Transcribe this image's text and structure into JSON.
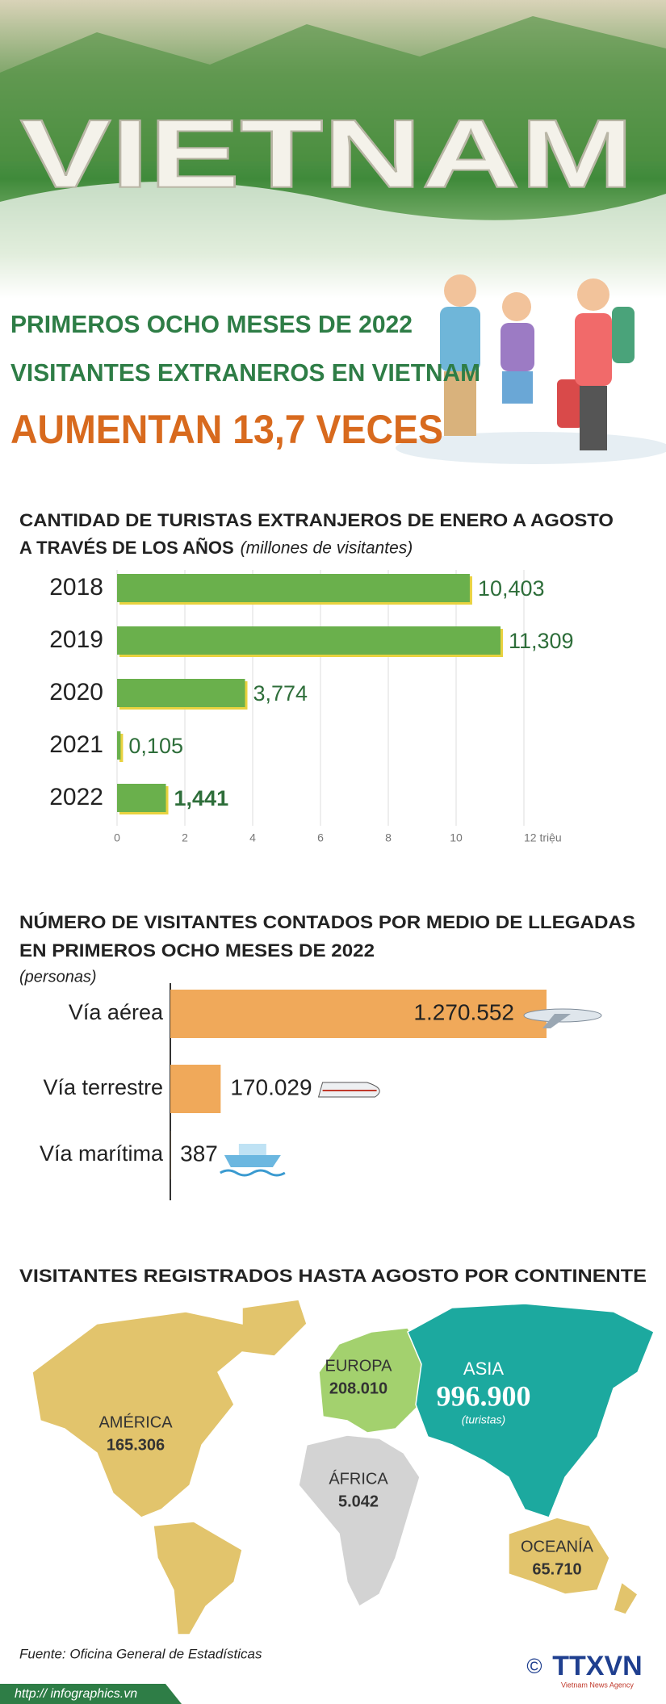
{
  "header": {
    "image_text": "VIETNAM",
    "title_lines": [
      "PRIMEROS OCHO MESES DE 2022",
      "VISITANTES EXTRANEROS EN VIETNAM",
      "AUMENTAN 13,7 VECES"
    ]
  },
  "chart_data": [
    {
      "type": "bar",
      "orientation": "horizontal",
      "title": [
        "CANTIDAD DE TURISTAS EXTRANJEROS DE ENERO A AGOSTO",
        "A TRAVÉS DE LOS AÑOS"
      ],
      "subtitle": "(millones de visitantes)",
      "categories": [
        "2018",
        "2019",
        "2020",
        "2021",
        "2022"
      ],
      "values": [
        10.403,
        11.309,
        3.774,
        0.105,
        1.441
      ],
      "value_labels": [
        "10,403",
        "11,309",
        "3,774",
        "0,105",
        "1,441"
      ],
      "color": "#6ab04c",
      "xlim": [
        0,
        12
      ],
      "xticks": [
        0,
        2,
        4,
        6,
        8,
        10,
        {
          "value": 12,
          "label": "12 triệu"
        }
      ],
      "grid": true
    },
    {
      "type": "bar",
      "orientation": "horizontal",
      "title": [
        "NÚMERO DE VISITANTES CONTADOS POR MEDIO DE LLEGADAS",
        "EN PRIMEROS OCHO MESES DE 2022"
      ],
      "subtitle": "(personas)",
      "categories": [
        "Vía aérea",
        "Vía terrestre",
        "Vía marítima"
      ],
      "values": [
        1270552,
        170029,
        387
      ],
      "value_labels": [
        "1.270.552",
        "170.029",
        "387"
      ],
      "color": "#f0a95a"
    },
    {
      "type": "map",
      "title": "VISITANTES REGISTRADOS HASTA AGOSTO POR CONTINENTE",
      "categories": [
        "AMÉRICA",
        "EUROPA",
        "ASIA",
        "ÁFRICA",
        "OCEANÍA"
      ],
      "values": [
        165306,
        208010,
        996900,
        5042,
        65710
      ],
      "value_labels": [
        "165.306",
        "208.010",
        "996.900",
        "5.042",
        "65.710"
      ],
      "unit": "(turistas)",
      "colors": [
        "#e2c46c",
        "#a3d16e",
        "#1ca99f",
        "#d3d3d3",
        "#e2c46c"
      ]
    }
  ],
  "footer": {
    "source": "Fuente: Oficina General de Estadísticas",
    "url": "http:// infographics.vn",
    "copyright": "©",
    "agency": "TTXVN",
    "agency_name": "Vietnam News Agency"
  }
}
